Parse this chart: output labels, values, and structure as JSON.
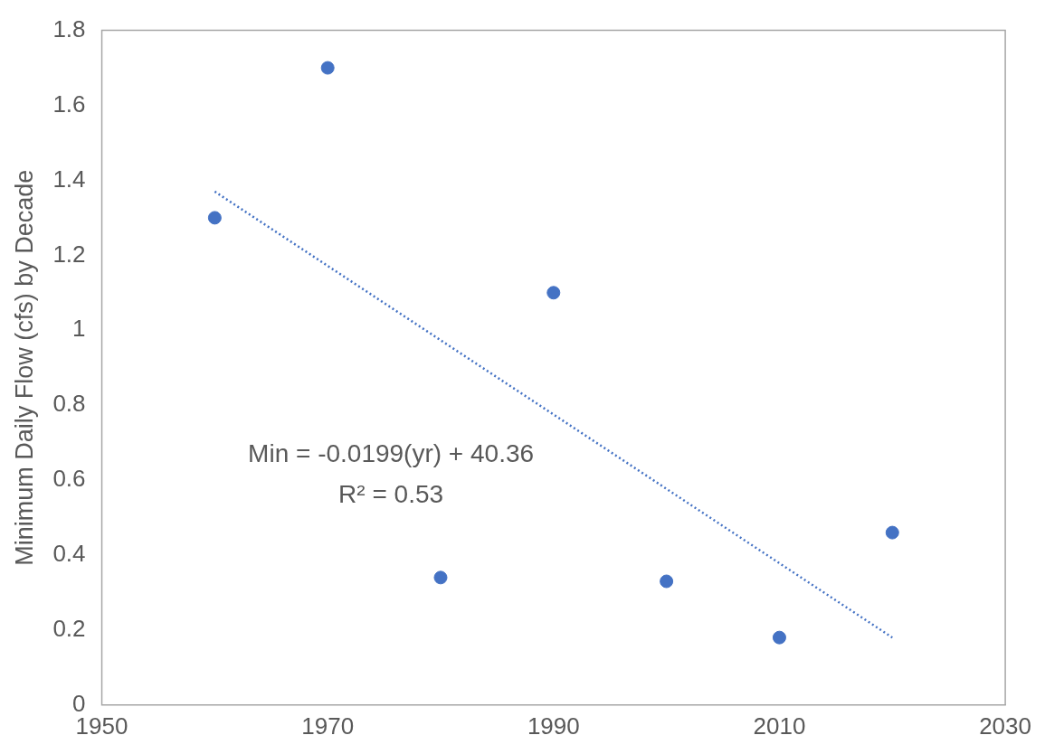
{
  "chart_data": {
    "type": "scatter",
    "ylabel": "Minimum Daily Flow (cfs) by Decade",
    "x": [
      1960,
      1970,
      1980,
      1990,
      2000,
      2010,
      2020
    ],
    "series": [
      {
        "type": "scatter",
        "color": "#4472c4",
        "values": [
          1.3,
          1.7,
          0.34,
          1.1,
          0.33,
          0.18,
          0.46
        ],
        "marker": "circle"
      },
      {
        "type": "line",
        "color": "#4472c4",
        "x": [
          1960,
          2020
        ],
        "values": [
          1.37,
          0.18
        ],
        "line_style": "dotted",
        "marker": "none"
      }
    ],
    "xlim": [
      1950,
      2030
    ],
    "xticks": [
      1950,
      1970,
      1990,
      2010,
      2030
    ],
    "ylim": [
      0,
      1.8
    ],
    "yticks": [
      0,
      0.2,
      0.4,
      0.6,
      0.8,
      1,
      1.2,
      1.4,
      1.6,
      1.8
    ],
    "grid": false,
    "legend": false,
    "annotations": [
      "Min = -0.0199(yr) + 40.36",
      "R² = 0.53"
    ]
  }
}
